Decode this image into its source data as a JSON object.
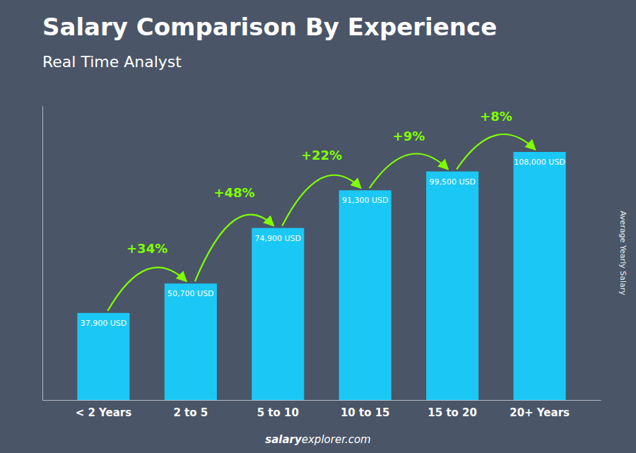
{
  "chart_data": {
    "type": "bar",
    "title": "Salary Comparison By Experience",
    "subtitle": "Real Time Analyst",
    "y_label": "Average Yearly Salary",
    "footer": [
      "salary",
      "explorer.com"
    ],
    "categories": [
      "< 2 Years",
      "2 to 5",
      "5 to 10",
      "10 to 15",
      "15 to 20",
      "20+ Years"
    ],
    "values": [
      37900,
      50700,
      74900,
      91300,
      99500,
      108000
    ],
    "value_labels": [
      "37,900 USD",
      "50,700 USD",
      "74,900 USD",
      "91,300 USD",
      "99,500 USD",
      "108,000 USD"
    ],
    "annotations": [
      "+34%",
      "+48%",
      "+22%",
      "+9%",
      "+8%"
    ],
    "color": "#1BC8F5",
    "ylim": [
      0,
      128000
    ],
    "data_labels": true,
    "tick_labels": "x",
    "grid": false
  }
}
